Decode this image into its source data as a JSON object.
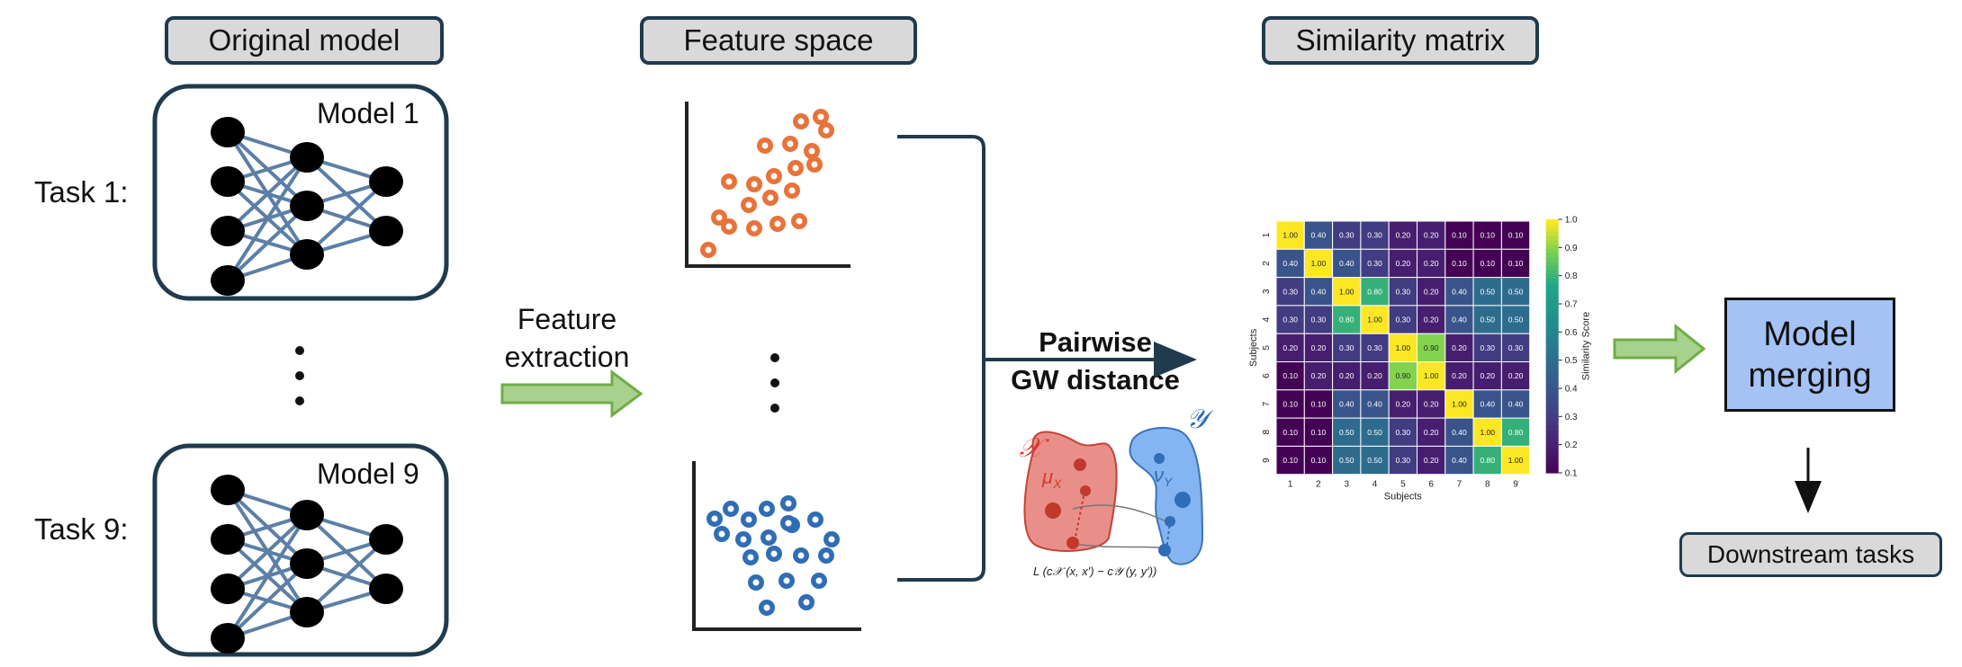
{
  "headers": {
    "original_model": "Original model",
    "feature_space": "Feature space",
    "similarity_matrix": "Similarity matrix"
  },
  "tasks": {
    "task1": "Task 1:",
    "task9": "Task 9:"
  },
  "models": {
    "model1": "Model 1",
    "model9": "Model 9"
  },
  "feature_extraction": {
    "line1": "Feature",
    "line2": "extraction"
  },
  "pairwise": {
    "line1": "Pairwise",
    "line2": "GW distance"
  },
  "gw_illustration": {
    "x_space": "𝒳",
    "y_space": "𝒴",
    "mu": "μ",
    "mu_sub": "X",
    "nu": "ν",
    "nu_sub": "Y",
    "loss": "L (c𝒳 (x, x′) − c𝒴 (y, y′))"
  },
  "model_merging": {
    "line1": "Model",
    "line2": "merging"
  },
  "downstream": "Downstream tasks",
  "colors": {
    "border_dark": "#1f3b4d",
    "header_fill": "#d9d9d9",
    "arrow_green_fill": "#a9d18e",
    "arrow_green_stroke": "#70ad47",
    "merge_fill": "#a4c2f4",
    "orange_dot": "#e8733a",
    "blue_dot": "#2f6db5"
  },
  "chart_data": {
    "type": "heatmap",
    "xlabel": "Subjects",
    "ylabel": "Subjects",
    "colorbar_label": "Similarity Score",
    "x_ticks": [
      "1",
      "2",
      "3",
      "4",
      "5",
      "6",
      "7",
      "8",
      "9"
    ],
    "y_ticks": [
      "1",
      "2",
      "3",
      "4",
      "5",
      "6",
      "7",
      "8",
      "9"
    ],
    "colorbar_ticks": [
      "1.0",
      "0.9",
      "0.8",
      "0.7",
      "0.6",
      "0.5",
      "0.4",
      "0.3",
      "0.2",
      "0.1"
    ],
    "range": [
      0.1,
      1.0
    ],
    "values": [
      [
        1.0,
        0.4,
        0.3,
        0.3,
        0.2,
        0.2,
        0.1,
        0.1,
        0.1
      ],
      [
        0.4,
        1.0,
        0.4,
        0.3,
        0.2,
        0.2,
        0.1,
        0.1,
        0.1
      ],
      [
        0.3,
        0.4,
        1.0,
        0.8,
        0.3,
        0.2,
        0.4,
        0.5,
        0.5
      ],
      [
        0.3,
        0.3,
        0.8,
        1.0,
        0.3,
        0.2,
        0.4,
        0.5,
        0.5
      ],
      [
        0.2,
        0.2,
        0.3,
        0.3,
        1.0,
        0.9,
        0.2,
        0.3,
        0.3
      ],
      [
        0.1,
        0.2,
        0.2,
        0.2,
        0.9,
        1.0,
        0.2,
        0.2,
        0.2
      ],
      [
        0.1,
        0.1,
        0.4,
        0.4,
        0.2,
        0.2,
        1.0,
        0.4,
        0.4
      ],
      [
        0.1,
        0.1,
        0.5,
        0.5,
        0.3,
        0.2,
        0.4,
        1.0,
        0.8
      ],
      [
        0.1,
        0.1,
        0.5,
        0.5,
        0.3,
        0.2,
        0.4,
        0.8,
        1.0
      ]
    ]
  }
}
